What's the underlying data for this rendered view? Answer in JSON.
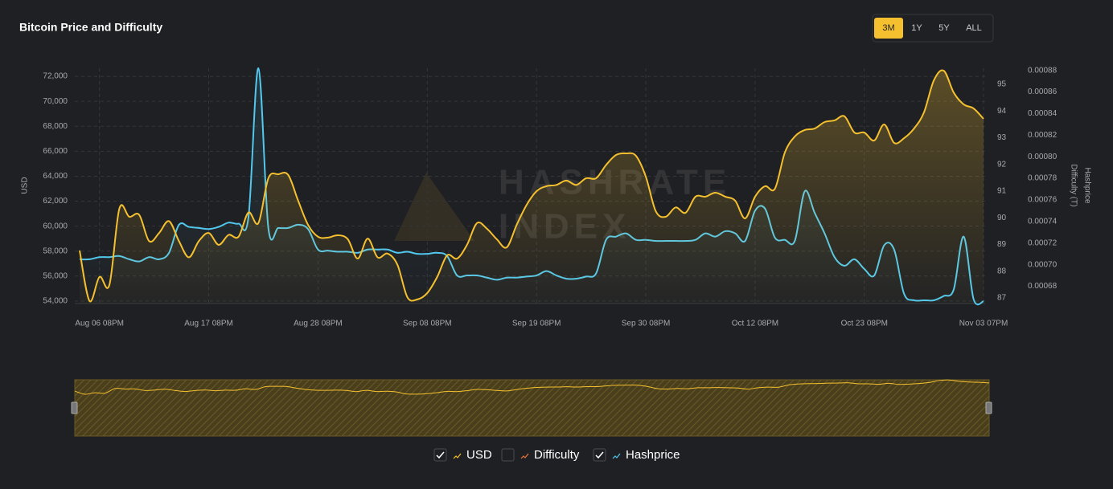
{
  "title": "Bitcoin Price and Difficulty",
  "range_buttons": [
    "3M",
    "1Y",
    "5Y",
    "ALL"
  ],
  "active_range": "3M",
  "chart_data": {
    "type": "line",
    "watermark": [
      "HASHRATE",
      "INDEX"
    ],
    "y_label": "USD",
    "y2_label": "Difficulty (T)",
    "y3_label": "Hashprice",
    "categories": [
      null,
      null,
      "Aug 06 08PM",
      null,
      null,
      null,
      null,
      null,
      null,
      null,
      null,
      null,
      null,
      "Aug 17 08PM",
      null,
      null,
      null,
      null,
      null,
      null,
      null,
      null,
      null,
      null,
      "Aug 28 08PM",
      null,
      null,
      null,
      null,
      null,
      null,
      null,
      null,
      null,
      null,
      "Sep 08 08PM",
      null,
      null,
      null,
      null,
      null,
      null,
      null,
      null,
      null,
      null,
      "Sep 19 08PM",
      null,
      null,
      null,
      null,
      null,
      null,
      null,
      null,
      null,
      null,
      "Sep 30 08PM",
      null,
      null,
      null,
      null,
      null,
      null,
      null,
      null,
      null,
      null,
      "Oct 12 08PM",
      null,
      null,
      null,
      null,
      null,
      null,
      null,
      null,
      null,
      null,
      "Oct 23 08PM",
      null,
      null,
      null,
      null,
      null,
      null,
      null,
      null,
      null,
      null,
      null,
      "Nov 03 07PM"
    ],
    "series": [
      {
        "name": "USD",
        "color": "#f5c02f",
        "visible": true,
        "axis": "y",
        "values": [
          58050,
          54000,
          55930,
          55300,
          61400,
          60750,
          60900,
          58800,
          59450,
          60400,
          58800,
          57500,
          58800,
          59450,
          58500,
          59300,
          59150,
          61100,
          60250,
          63840,
          64160,
          64100,
          62040,
          60100,
          59150,
          59080,
          59270,
          58950,
          57400,
          59000,
          57500,
          57800,
          56900,
          54300,
          54130,
          54640,
          55930,
          57660,
          57400,
          58500,
          60240,
          59800,
          58950,
          58300,
          60100,
          61700,
          62800,
          63200,
          63300,
          63650,
          63300,
          63840,
          63840,
          64900,
          65700,
          65830,
          65640,
          63970,
          61200,
          60750,
          61500,
          61070,
          62360,
          62360,
          62680,
          62360,
          62040,
          60620,
          62360,
          63200,
          63000,
          65900,
          67180,
          67700,
          67820,
          68340,
          68470,
          68800,
          67500,
          67500,
          66860,
          68150,
          66670,
          67050,
          67820,
          69100,
          71680,
          72450,
          70700,
          69760,
          69430,
          68600
        ]
      },
      {
        "name": "Difficulty",
        "color": "#e8743b",
        "visible": false,
        "axis": "y2"
      },
      {
        "name": "Hashprice",
        "color": "#52c8ee",
        "visible": true,
        "axis": "y3",
        "values": [
          0.000705,
          0.000705,
          0.000707,
          0.000707,
          0.000708,
          0.000705,
          0.000703,
          0.000707,
          0.000705,
          0.000711,
          0.000737,
          0.000735,
          0.000734,
          0.000733,
          0.000735,
          0.000739,
          0.000738,
          0.000744,
          0.000882,
          0.000734,
          0.000734,
          0.000734,
          0.000737,
          0.000733,
          0.000714,
          0.000713,
          0.000712,
          0.000712,
          0.000711,
          0.000714,
          0.000714,
          0.000714,
          0.000711,
          0.000712,
          0.00071,
          0.00071,
          0.000711,
          0.000708,
          0.00069,
          0.00069,
          0.00069,
          0.000688,
          0.000686,
          0.000688,
          0.000688,
          0.000689,
          0.00069,
          0.000694,
          0.00069,
          0.000687,
          0.000687,
          0.000689,
          0.000692,
          0.000723,
          0.000726,
          0.000729,
          0.000723,
          0.000723,
          0.000722,
          0.000722,
          0.000722,
          0.000722,
          0.000723,
          0.000729,
          0.000726,
          0.000731,
          0.000729,
          0.000722,
          0.00075,
          0.000752,
          0.000725,
          0.000723,
          0.000722,
          0.000768,
          0.000748,
          0.000729,
          0.000707,
          0.000699,
          0.000705,
          0.000696,
          0.00069,
          0.000718,
          0.000714,
          0.000673,
          0.000667,
          0.000667,
          0.000667,
          0.000671,
          0.000677,
          0.000726,
          0.000668,
          0.000666
        ]
      }
    ],
    "ylim": [
      53800,
      72650
    ],
    "yticks": [
      {
        "value": 54000,
        "label": "54,000"
      },
      {
        "value": 56000,
        "label": "56,000"
      },
      {
        "value": 58000,
        "label": "58,000"
      },
      {
        "value": 60000,
        "label": "60,000"
      },
      {
        "value": 62000,
        "label": "62,000"
      },
      {
        "value": 64000,
        "label": "64,000"
      },
      {
        "value": 66000,
        "label": "66,000"
      },
      {
        "value": 68000,
        "label": "68,000"
      },
      {
        "value": 70000,
        "label": "70,000"
      },
      {
        "value": 72000,
        "label": "72,000"
      }
    ],
    "y2lim": [
      86.79,
      95.6
    ],
    "y2ticks": [
      87,
      88,
      89,
      90,
      91,
      92,
      93,
      94,
      95
    ],
    "y3lim": [
      0.000664,
      0.000882
    ],
    "y3ticks": [
      0.00068,
      {
        "value": 0.0007,
        "label": "0.00070"
      },
      0.00072,
      0.00074,
      0.00076,
      0.00078,
      {
        "value": 0.0008,
        "label": "0.00080"
      },
      0.00082,
      0.00084,
      0.00086,
      0.00088
    ],
    "grid": true
  }
}
